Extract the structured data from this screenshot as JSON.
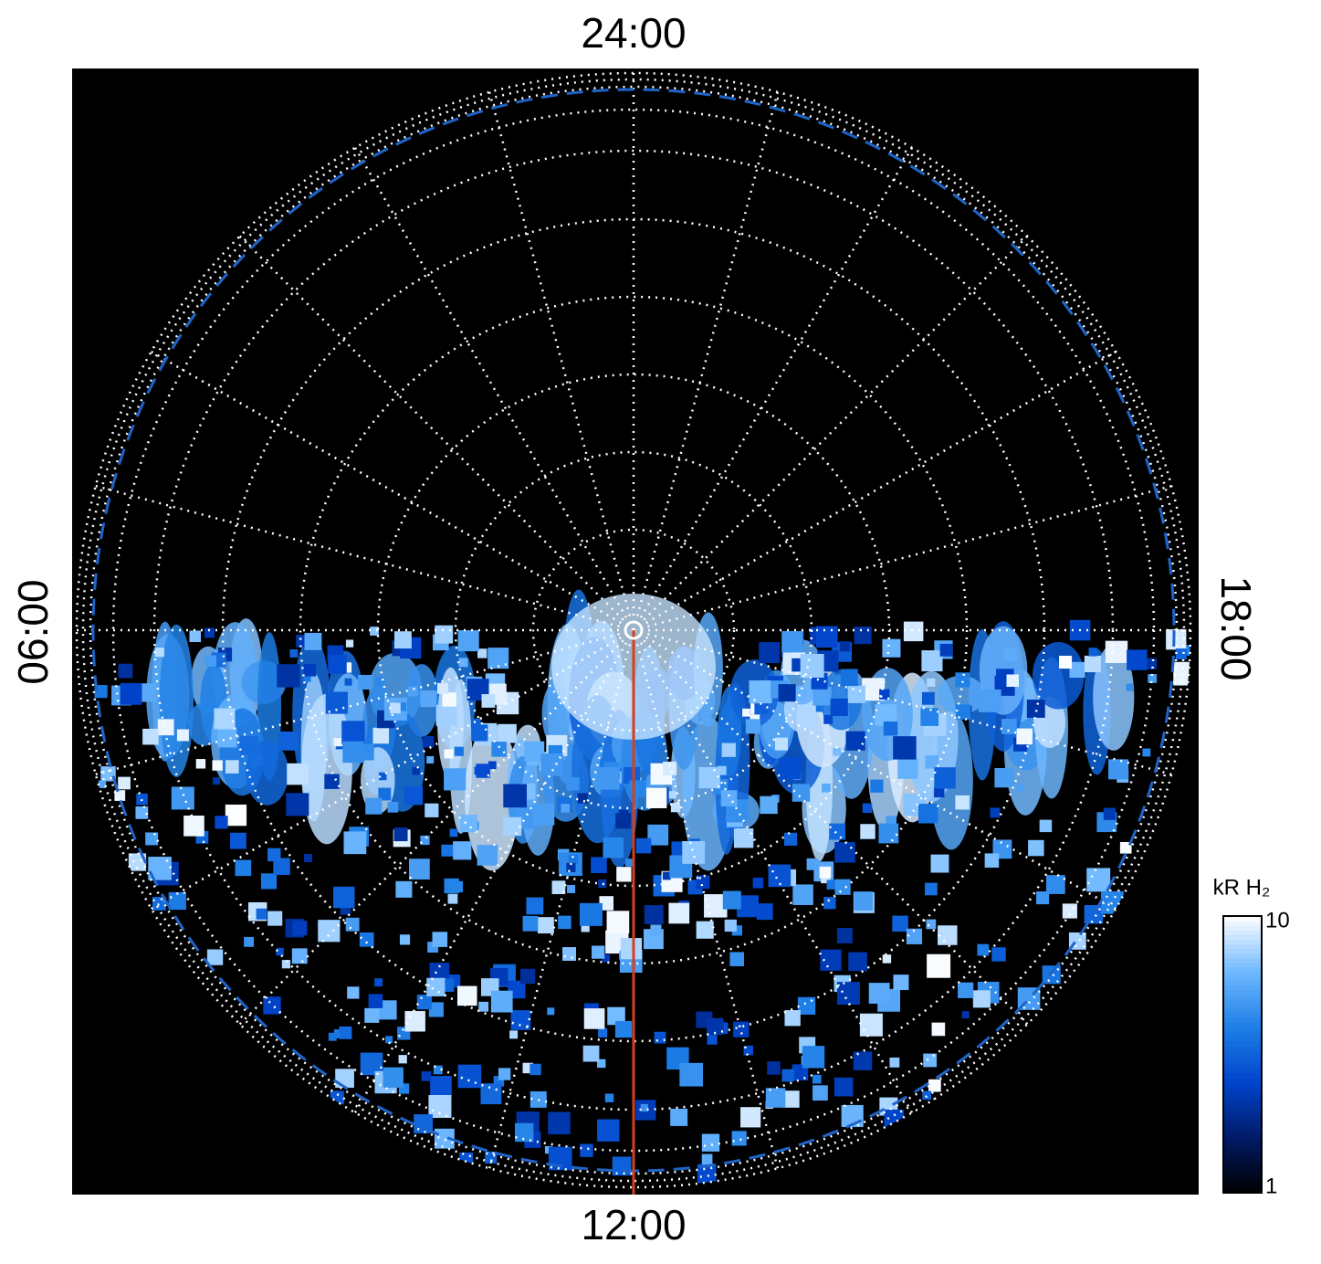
{
  "chart_data": {
    "type": "polar-map",
    "local_time_labels": {
      "top": "24:00",
      "bottom": "12:00",
      "left": "06:00",
      "right": "18:00"
    },
    "colorbar": {
      "label": "kR H₂",
      "lim": [
        1,
        10
      ],
      "ticks": [
        1,
        10
      ],
      "log": true,
      "colors": [
        "#000000",
        "#001a66",
        "#0044cc",
        "#1e7fe6",
        "#6fb8ff",
        "#ffffff"
      ]
    },
    "line_color": "#d2401e",
    "boundary_color": "#1e64c8"
  }
}
